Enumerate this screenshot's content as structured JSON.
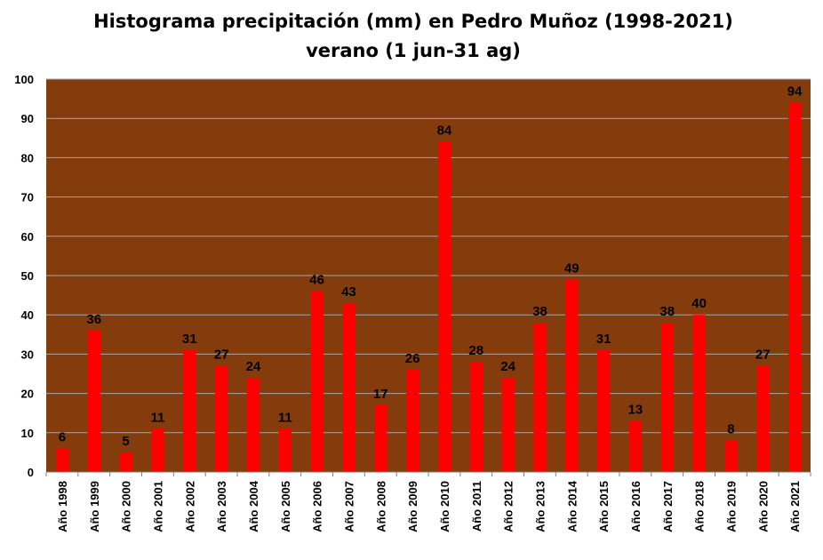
{
  "chart_data": {
    "type": "bar",
    "title": "Histograma precipitación (mm) en Pedro Muñoz (1998-2021)",
    "subtitle": "verano (1 jun-31 ag)",
    "xlabel": "",
    "ylabel": "",
    "ylim": [
      0,
      100
    ],
    "yticks": [
      0,
      10,
      20,
      30,
      40,
      50,
      60,
      70,
      80,
      90,
      100
    ],
    "grid": true,
    "legend": "none",
    "colors": {
      "plot_bg": "#843C0C",
      "bar": "#FF0000",
      "grid": "#A6A6A6"
    },
    "categories": [
      "Año 1998",
      "Año 1999",
      "Año 2000",
      "Año 2001",
      "Año 2002",
      "Año 2003",
      "Año 2004",
      "Año 2005",
      "Año 2006",
      "Año 2007",
      "Año 2008",
      "Año 2009",
      "Año 2010",
      "Año 2011",
      "Año 2012",
      "Año 2013",
      "Año 2014",
      "Año 2015",
      "Año 2016",
      "Año 2017",
      "Año 2018",
      "Año 2019",
      "Año 2020",
      "Año 2021"
    ],
    "values": [
      6,
      36,
      5,
      11,
      31,
      27,
      24,
      11,
      46,
      43,
      17,
      26,
      84,
      28,
      24,
      38,
      49,
      31,
      13,
      38,
      40,
      8,
      27,
      94
    ]
  }
}
